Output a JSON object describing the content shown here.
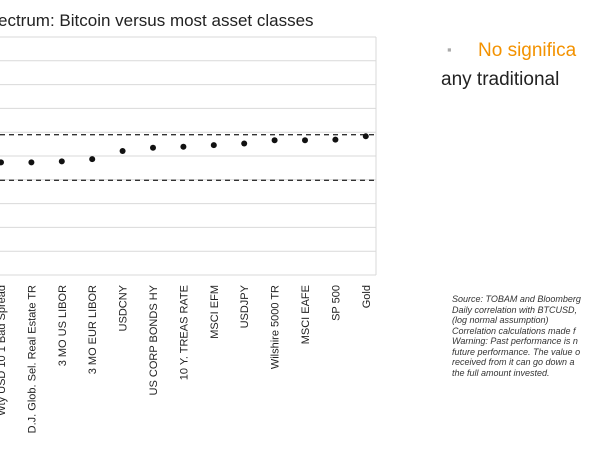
{
  "colors": {
    "accent": "#f39200",
    "grid": "#d9d9d9",
    "text": "#222222"
  },
  "side": {
    "bullet": "▪",
    "headline_line1": "No significa",
    "headline_line2": "any traditional"
  },
  "source_note": [
    "Source: TOBAM and Bloomberg",
    "Daily correlation with BTCUSD,",
    "(log normal assumption)",
    "Correlation calculations made f",
    "Warning: Past performance is n",
    "future performance. The value o",
    "received from it can go down a",
    "the full amount invested."
  ],
  "chart_data": {
    "type": "scatter",
    "title": "ectrum: Bitcoin versus most asset classes",
    "categories": [
      "Wty USD 10 1 Bad Spread",
      "D.J. Glob. Sel. Real Estate TR",
      "3 MO US LIBOR",
      "3 MO EUR LIBOR",
      "USDCNY",
      "US CORP BONDS HY",
      "10 Y. TREAS RATE",
      "MSCI EFM",
      "USDJPY",
      "Wilshire 5000 TR",
      "MSCI EAFE",
      "SP 500",
      "Gold"
    ],
    "values": [
      -0.015,
      -0.015,
      -0.012,
      -0.005,
      0.02,
      0.03,
      0.033,
      0.038,
      0.043,
      0.053,
      0.053,
      0.055,
      0.065
    ],
    "ylim": [
      -0.25,
      0.25
    ],
    "reference_lines": [
      0.07,
      -0.07
    ],
    "grid": true
  }
}
